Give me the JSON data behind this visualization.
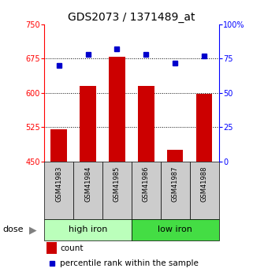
{
  "title": "GDS2073 / 1371489_at",
  "samples": [
    "GSM41983",
    "GSM41984",
    "GSM41985",
    "GSM41986",
    "GSM41987",
    "GSM41988"
  ],
  "bar_values": [
    520,
    615,
    680,
    615,
    475,
    598
  ],
  "percentile_values": [
    70,
    78,
    82,
    78,
    72,
    77
  ],
  "bar_color": "#cc0000",
  "dot_color": "#0000cc",
  "ylim_left": [
    450,
    750
  ],
  "ylim_right": [
    0,
    100
  ],
  "yticks_left": [
    450,
    525,
    600,
    675,
    750
  ],
  "yticks_right": [
    0,
    25,
    50,
    75,
    100
  ],
  "ytick_labels_right": [
    "0",
    "25",
    "50",
    "75",
    "100%"
  ],
  "groups": [
    {
      "label": "high iron",
      "indices": [
        0,
        1,
        2
      ],
      "color": "#bbffbb"
    },
    {
      "label": "low iron",
      "indices": [
        3,
        4,
        5
      ],
      "color": "#44dd44"
    }
  ],
  "dose_label": "dose",
  "legend_count_label": "count",
  "legend_percentile_label": "percentile rank within the sample",
  "bg_color": "#ffffff",
  "sample_label_bg": "#cccccc",
  "grid_color": "#000000",
  "bar_width": 0.55,
  "title_fontsize": 10,
  "tick_fontsize": 7,
  "sample_fontsize": 6,
  "group_fontsize": 8,
  "legend_fontsize": 7.5
}
